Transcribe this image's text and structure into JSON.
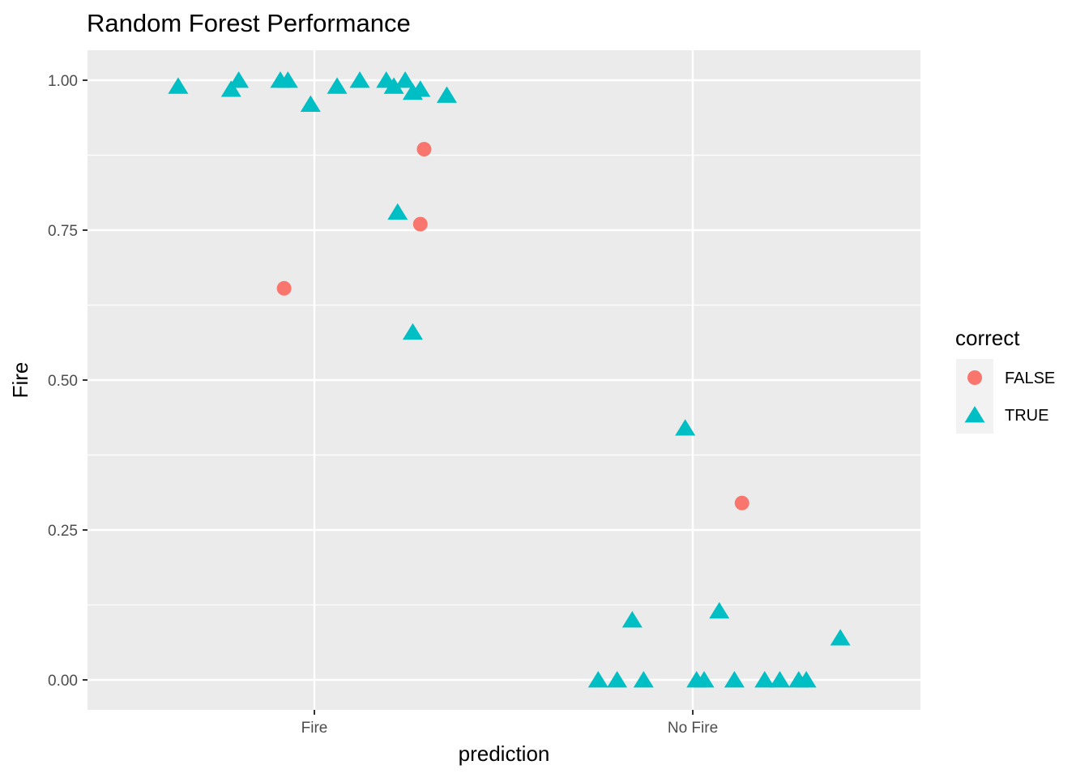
{
  "chart_data": {
    "type": "scatter",
    "title": "Random Forest Performance",
    "xlabel": "prediction",
    "ylabel": "Fire",
    "categories": [
      "Fire",
      "No Fire"
    ],
    "y_ticks": [
      "0.00",
      "0.25",
      "0.50",
      "0.75",
      "1.00"
    ],
    "ylim": [
      -0.05,
      1.05
    ],
    "x_jitter_note": "points are horizontally jittered around each category",
    "grid": true,
    "legend": {
      "title": "correct",
      "position": "right",
      "entries": [
        "FALSE",
        "TRUE"
      ]
    },
    "colors": {
      "FALSE": "#F8766D",
      "TRUE": "#00BFC4",
      "panel": "#EBEBEB",
      "grid": "#FFFFFF"
    },
    "series": [
      {
        "name": "FALSE",
        "shape": "circle",
        "points": [
          {
            "category": "Fire",
            "jitter": 0.29,
            "y": 0.885
          },
          {
            "category": "Fire",
            "jitter": 0.28,
            "y": 0.76
          },
          {
            "category": "Fire",
            "jitter": -0.08,
            "y": 0.653
          },
          {
            "category": "No Fire",
            "jitter": 0.13,
            "y": 0.295
          }
        ]
      },
      {
        "name": "TRUE",
        "shape": "triangle",
        "points": [
          {
            "category": "Fire",
            "jitter": -0.36,
            "y": 0.99
          },
          {
            "category": "Fire",
            "jitter": -0.22,
            "y": 0.985
          },
          {
            "category": "Fire",
            "jitter": -0.2,
            "y": 1.0
          },
          {
            "category": "Fire",
            "jitter": -0.09,
            "y": 1.0
          },
          {
            "category": "Fire",
            "jitter": -0.07,
            "y": 1.0
          },
          {
            "category": "Fire",
            "jitter": -0.01,
            "y": 0.96
          },
          {
            "category": "Fire",
            "jitter": 0.06,
            "y": 0.99
          },
          {
            "category": "Fire",
            "jitter": 0.12,
            "y": 1.0
          },
          {
            "category": "Fire",
            "jitter": 0.19,
            "y": 1.0
          },
          {
            "category": "Fire",
            "jitter": 0.21,
            "y": 0.99
          },
          {
            "category": "Fire",
            "jitter": 0.24,
            "y": 1.0
          },
          {
            "category": "Fire",
            "jitter": 0.26,
            "y": 0.98
          },
          {
            "category": "Fire",
            "jitter": 0.28,
            "y": 0.985
          },
          {
            "category": "Fire",
            "jitter": 0.35,
            "y": 0.975
          },
          {
            "category": "Fire",
            "jitter": 0.22,
            "y": 0.78
          },
          {
            "category": "Fire",
            "jitter": 0.26,
            "y": 0.58
          },
          {
            "category": "No Fire",
            "jitter": -0.02,
            "y": 0.42
          },
          {
            "category": "No Fire",
            "jitter": -0.16,
            "y": 0.1
          },
          {
            "category": "No Fire",
            "jitter": 0.07,
            "y": 0.115
          },
          {
            "category": "No Fire",
            "jitter": 0.39,
            "y": 0.07
          },
          {
            "category": "No Fire",
            "jitter": -0.25,
            "y": 0.0
          },
          {
            "category": "No Fire",
            "jitter": -0.2,
            "y": 0.0
          },
          {
            "category": "No Fire",
            "jitter": -0.13,
            "y": 0.0
          },
          {
            "category": "No Fire",
            "jitter": 0.01,
            "y": 0.0
          },
          {
            "category": "No Fire",
            "jitter": 0.03,
            "y": 0.0
          },
          {
            "category": "No Fire",
            "jitter": 0.11,
            "y": 0.0
          },
          {
            "category": "No Fire",
            "jitter": 0.19,
            "y": 0.0
          },
          {
            "category": "No Fire",
            "jitter": 0.23,
            "y": 0.0
          },
          {
            "category": "No Fire",
            "jitter": 0.28,
            "y": 0.0
          },
          {
            "category": "No Fire",
            "jitter": 0.3,
            "y": 0.0
          }
        ]
      }
    ]
  }
}
